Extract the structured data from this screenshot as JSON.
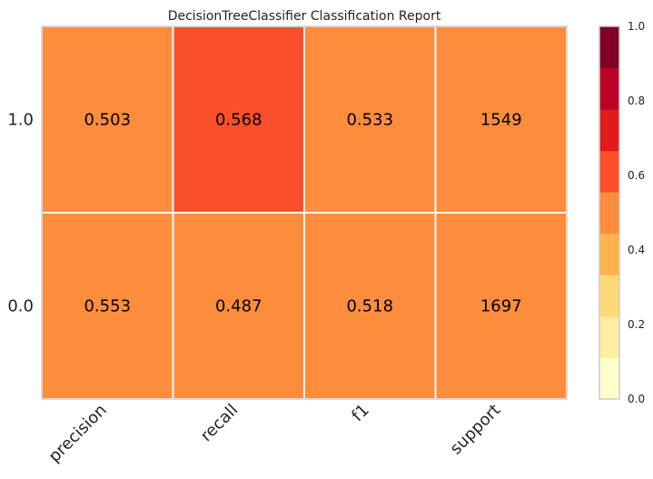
{
  "chart_data": {
    "type": "heatmap",
    "title": "DecisionTreeClassifier Classification Report",
    "columns": [
      "precision",
      "recall",
      "f1",
      "support"
    ],
    "rows": [
      "1.0",
      "0.0"
    ],
    "cells": [
      [
        {
          "value": 0.503,
          "label": "0.503",
          "color_value": 0.503
        },
        {
          "value": 0.568,
          "label": "0.568",
          "color_value": 0.568
        },
        {
          "value": 0.533,
          "label": "0.533",
          "color_value": 0.533
        },
        {
          "value": 1549,
          "label": "1549",
          "color_value": 0.503
        }
      ],
      [
        {
          "value": 0.553,
          "label": "0.553",
          "color_value": 0.553
        },
        {
          "value": 0.487,
          "label": "0.487",
          "color_value": 0.487
        },
        {
          "value": 0.518,
          "label": "0.518",
          "color_value": 0.518
        },
        {
          "value": 1697,
          "label": "1697",
          "color_value": 0.553
        }
      ]
    ],
    "colorbar": {
      "range": [
        0.0,
        1.0
      ],
      "ticks": [
        "0.0",
        "0.2",
        "0.4",
        "0.6",
        "0.8",
        "1.0"
      ],
      "bins": [
        "#ffffcc",
        "#ffeda0",
        "#fed976",
        "#feb24c",
        "#fd8d3c",
        "#fc4e2a",
        "#e31a1c",
        "#bd0026",
        "#800026"
      ]
    },
    "grid": false,
    "legend": "colorbar-right"
  }
}
